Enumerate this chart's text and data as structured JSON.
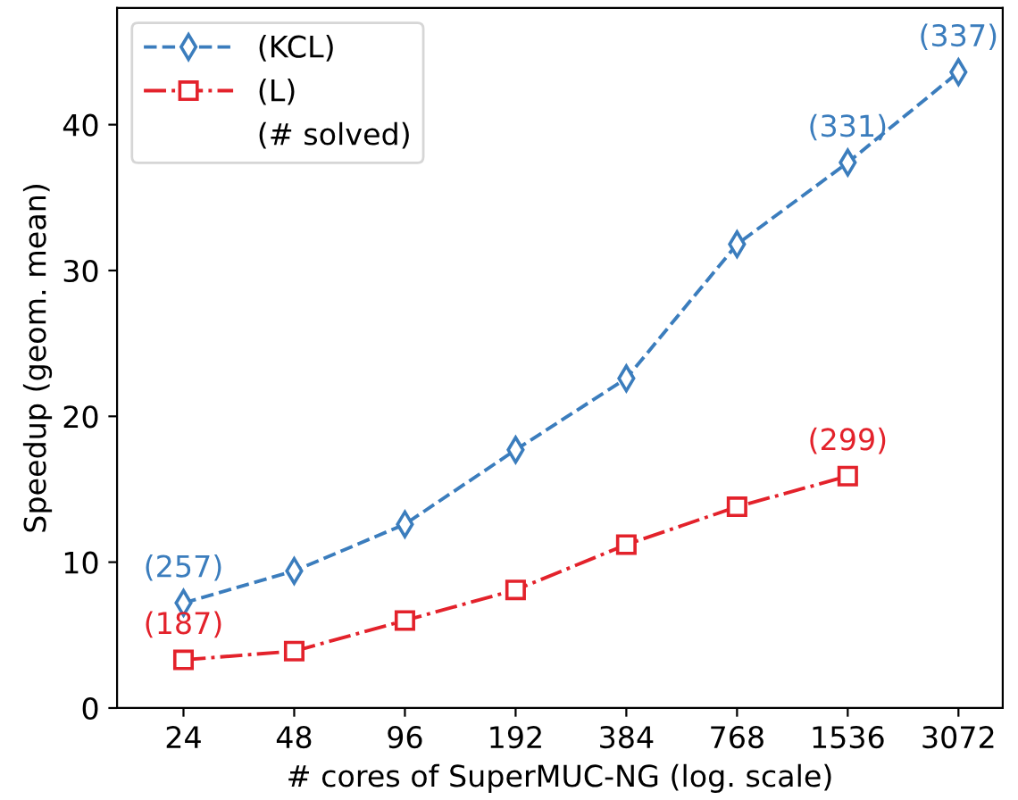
{
  "chart_data": {
    "type": "line",
    "xlabel": "# cores of SuperMUC-NG (log. scale)",
    "ylabel": "Speedup (geom. mean)",
    "categories": [
      "24",
      "48",
      "96",
      "192",
      "384",
      "768",
      "1536",
      "3072"
    ],
    "series": [
      {
        "name": "(KCL)",
        "color": "#3b7dbd",
        "marker": "diamond",
        "line_style": "dashed",
        "values": [
          7.2,
          9.4,
          12.6,
          17.7,
          22.6,
          31.8,
          37.4,
          43.6
        ]
      },
      {
        "name": "(L)",
        "color": "#e3222b",
        "marker": "square",
        "line_style": "dashdot",
        "values": [
          3.3,
          3.9,
          6.0,
          8.1,
          11.2,
          13.8,
          15.9,
          null
        ]
      }
    ],
    "legend_title": "(# solved)",
    "annotations": [
      {
        "text": "(257)",
        "x": "24",
        "y": 7.2
      },
      {
        "text": "(331)",
        "x": "1536",
        "y": 37.4
      },
      {
        "text": "(337)",
        "x": "3072",
        "y": 43.6
      },
      {
        "text": "(187)",
        "x": "24",
        "y": 3.3
      },
      {
        "text": "(299)",
        "x": "1536",
        "y": 15.9
      }
    ],
    "ylim": [
      0,
      48
    ],
    "yticks": [
      0,
      10,
      20,
      30,
      40
    ],
    "grid": false,
    "legend": "top left"
  }
}
